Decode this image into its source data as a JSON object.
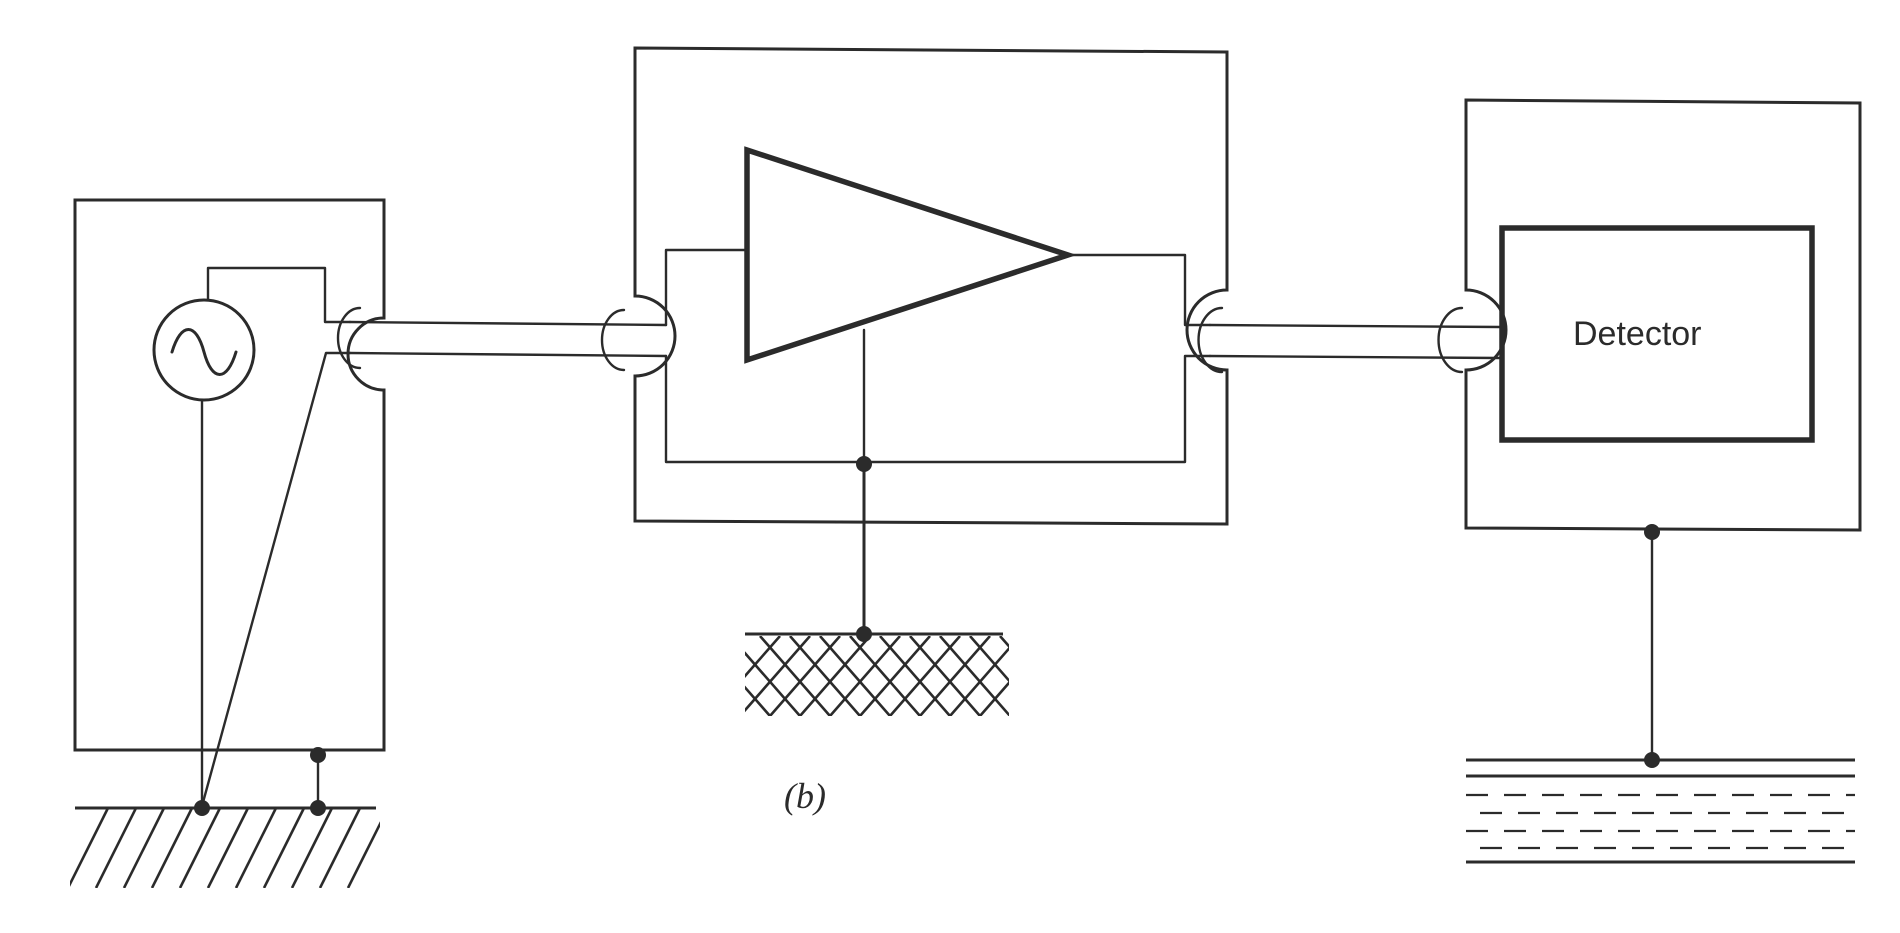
{
  "diagram": {
    "detector_label": "Detector",
    "caption": "(b)"
  }
}
